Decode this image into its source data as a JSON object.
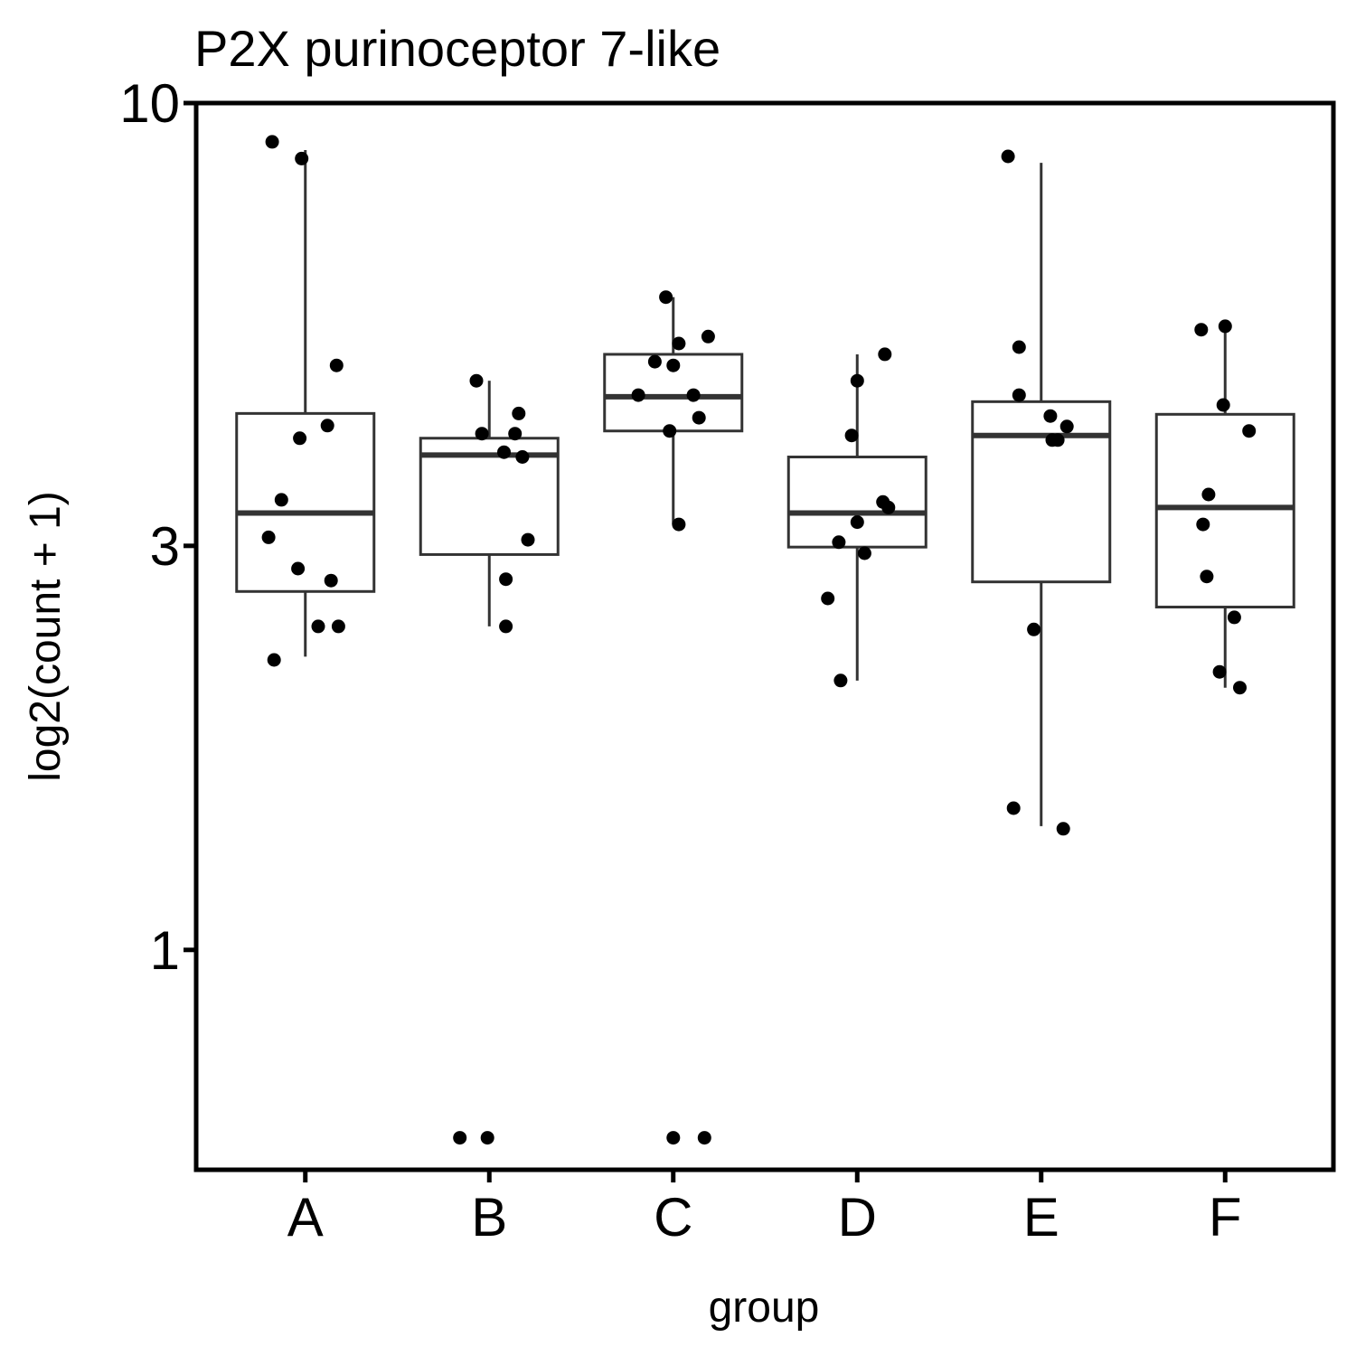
{
  "chart_data": {
    "type": "box",
    "title": "P2X purinoceptor 7-like",
    "xlabel": "group",
    "ylabel": "log2(count + 1)",
    "y_scale": "log",
    "ylim": [
      0.55,
      10
    ],
    "y_ticks": [
      1,
      3,
      10
    ],
    "y_tick_labels": [
      "1",
      "3",
      "10"
    ],
    "categories": [
      "A",
      "B",
      "C",
      "D",
      "E",
      "F"
    ],
    "grid": false,
    "legend": "none",
    "colors": {
      "box_stroke": "#333333",
      "point": "#000000",
      "frame": "#000000"
    },
    "boxes": [
      {
        "group": "A",
        "whisker_low": 2.22,
        "q1": 2.65,
        "median": 3.28,
        "q3": 4.3,
        "whisker_high": 8.8
      },
      {
        "group": "B",
        "whisker_low": 2.41,
        "q1": 2.93,
        "median": 3.84,
        "q3": 4.02,
        "whisker_high": 4.7
      },
      {
        "group": "C",
        "whisker_low": 3.18,
        "q1": 4.1,
        "median": 4.5,
        "q3": 5.05,
        "whisker_high": 5.9
      },
      {
        "group": "D",
        "whisker_low": 2.08,
        "q1": 2.99,
        "median": 3.28,
        "q3": 3.82,
        "whisker_high": 5.05
      },
      {
        "group": "E",
        "whisker_low": 1.4,
        "q1": 2.72,
        "median": 4.05,
        "q3": 4.44,
        "whisker_high": 8.5
      },
      {
        "group": "F",
        "whisker_low": 2.04,
        "q1": 2.54,
        "median": 3.33,
        "q3": 4.29,
        "whisker_high": 5.45
      }
    ],
    "points": [
      {
        "group": "A",
        "y": 9.0,
        "jitter": -0.18
      },
      {
        "group": "A",
        "y": 8.6,
        "jitter": -0.02
      },
      {
        "group": "A",
        "y": 4.9,
        "jitter": 0.17
      },
      {
        "group": "A",
        "y": 4.16,
        "jitter": 0.12
      },
      {
        "group": "A",
        "y": 4.02,
        "jitter": -0.03
      },
      {
        "group": "A",
        "y": 3.4,
        "jitter": -0.13
      },
      {
        "group": "A",
        "y": 3.07,
        "jitter": -0.2
      },
      {
        "group": "A",
        "y": 2.82,
        "jitter": -0.04
      },
      {
        "group": "A",
        "y": 2.73,
        "jitter": 0.14
      },
      {
        "group": "A",
        "y": 2.41,
        "jitter": 0.07
      },
      {
        "group": "A",
        "y": 2.41,
        "jitter": 0.18
      },
      {
        "group": "A",
        "y": 2.2,
        "jitter": -0.17
      },
      {
        "group": "B",
        "y": 4.7,
        "jitter": -0.07
      },
      {
        "group": "B",
        "y": 4.3,
        "jitter": 0.16
      },
      {
        "group": "B",
        "y": 4.07,
        "jitter": -0.04
      },
      {
        "group": "B",
        "y": 4.07,
        "jitter": 0.14
      },
      {
        "group": "B",
        "y": 3.87,
        "jitter": 0.08
      },
      {
        "group": "B",
        "y": 3.82,
        "jitter": 0.18
      },
      {
        "group": "B",
        "y": 3.05,
        "jitter": 0.21
      },
      {
        "group": "B",
        "y": 2.74,
        "jitter": 0.09
      },
      {
        "group": "B",
        "y": 2.41,
        "jitter": 0.09
      },
      {
        "group": "B",
        "y": 0.6,
        "jitter": -0.16
      },
      {
        "group": "B",
        "y": 0.6,
        "jitter": -0.01
      },
      {
        "group": "C",
        "y": 5.9,
        "jitter": -0.04
      },
      {
        "group": "C",
        "y": 5.3,
        "jitter": 0.19
      },
      {
        "group": "C",
        "y": 5.2,
        "jitter": 0.03
      },
      {
        "group": "C",
        "y": 4.95,
        "jitter": -0.1
      },
      {
        "group": "C",
        "y": 4.9,
        "jitter": 0.0
      },
      {
        "group": "C",
        "y": 4.52,
        "jitter": -0.19
      },
      {
        "group": "C",
        "y": 4.52,
        "jitter": 0.11
      },
      {
        "group": "C",
        "y": 4.25,
        "jitter": 0.14
      },
      {
        "group": "C",
        "y": 4.1,
        "jitter": -0.02
      },
      {
        "group": "C",
        "y": 3.18,
        "jitter": 0.03
      },
      {
        "group": "C",
        "y": 0.6,
        "jitter": 0.0
      },
      {
        "group": "C",
        "y": 0.6,
        "jitter": 0.17
      },
      {
        "group": "D",
        "y": 5.05,
        "jitter": 0.15
      },
      {
        "group": "D",
        "y": 4.7,
        "jitter": 0.0
      },
      {
        "group": "D",
        "y": 4.05,
        "jitter": -0.03
      },
      {
        "group": "D",
        "y": 3.38,
        "jitter": 0.14
      },
      {
        "group": "D",
        "y": 3.33,
        "jitter": 0.17
      },
      {
        "group": "D",
        "y": 3.2,
        "jitter": 0.0
      },
      {
        "group": "D",
        "y": 3.03,
        "jitter": -0.1
      },
      {
        "group": "D",
        "y": 2.94,
        "jitter": 0.04
      },
      {
        "group": "D",
        "y": 2.6,
        "jitter": -0.16
      },
      {
        "group": "D",
        "y": 2.08,
        "jitter": -0.09
      },
      {
        "group": "E",
        "y": 8.65,
        "jitter": -0.18
      },
      {
        "group": "E",
        "y": 5.15,
        "jitter": -0.12
      },
      {
        "group": "E",
        "y": 4.52,
        "jitter": -0.12
      },
      {
        "group": "E",
        "y": 4.27,
        "jitter": 0.05
      },
      {
        "group": "E",
        "y": 4.15,
        "jitter": 0.14
      },
      {
        "group": "E",
        "y": 4.0,
        "jitter": 0.06
      },
      {
        "group": "E",
        "y": 4.0,
        "jitter": 0.09
      },
      {
        "group": "E",
        "y": 2.39,
        "jitter": -0.04
      },
      {
        "group": "E",
        "y": 1.47,
        "jitter": -0.15
      },
      {
        "group": "E",
        "y": 1.39,
        "jitter": 0.12
      },
      {
        "group": "F",
        "y": 5.4,
        "jitter": -0.13
      },
      {
        "group": "F",
        "y": 5.45,
        "jitter": 0.0
      },
      {
        "group": "F",
        "y": 4.4,
        "jitter": -0.01
      },
      {
        "group": "F",
        "y": 4.1,
        "jitter": 0.13
      },
      {
        "group": "F",
        "y": 3.45,
        "jitter": -0.09
      },
      {
        "group": "F",
        "y": 3.18,
        "jitter": -0.12
      },
      {
        "group": "F",
        "y": 2.76,
        "jitter": -0.1
      },
      {
        "group": "F",
        "y": 2.47,
        "jitter": 0.05
      },
      {
        "group": "F",
        "y": 2.13,
        "jitter": -0.03
      },
      {
        "group": "F",
        "y": 2.04,
        "jitter": 0.08
      }
    ]
  }
}
